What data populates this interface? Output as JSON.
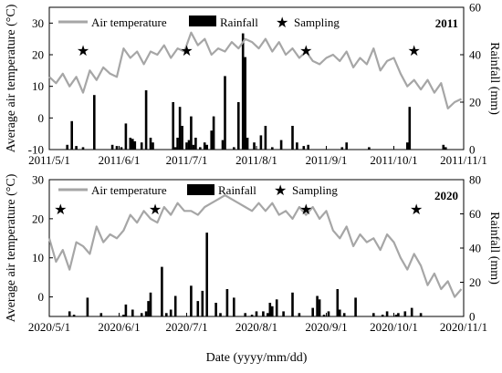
{
  "figure": {
    "xlabel": "Date (yyyy/mm/dd)"
  },
  "legend_labels": {
    "temperature": "Air temperature",
    "rainfall": "Rainfall",
    "sampling": "Sampling"
  },
  "colors": {
    "temperature": "#a6a6a6",
    "rainfall": "#000000",
    "sampling": "#000000"
  },
  "chart_data": [
    {
      "type": "line+bar",
      "year_label": "2011",
      "ylabel_left": "Average air temperature (°C)",
      "ylabel_right": "Rainfall (mm)",
      "y_left_range": [
        -10,
        35
      ],
      "y_left_ticks": [
        -10,
        0,
        10,
        20,
        30
      ],
      "y_right_range": [
        0,
        60
      ],
      "y_right_ticks": [
        0,
        20,
        40,
        60
      ],
      "x_range": [
        "2011-05-01",
        "2011-11-01"
      ],
      "x_ticks": [
        "2011/5/1",
        "2011/6/1",
        "2011/7/1",
        "2011/8/1",
        "2011/9/1",
        "2011/10/1",
        "2011/11/1"
      ],
      "legend": [
        "Air temperature",
        "Rainfall",
        "Sampling"
      ],
      "sampling_dates": [
        "2011-05-16",
        "2011-07-01",
        "2011-08-23",
        "2011-10-10"
      ],
      "temperature": {
        "dates": [
          "2011-05-01",
          "2011-05-04",
          "2011-05-07",
          "2011-05-10",
          "2011-05-13",
          "2011-05-16",
          "2011-05-19",
          "2011-05-22",
          "2011-05-25",
          "2011-05-28",
          "2011-05-31",
          "2011-06-03",
          "2011-06-06",
          "2011-06-09",
          "2011-06-12",
          "2011-06-15",
          "2011-06-18",
          "2011-06-21",
          "2011-06-24",
          "2011-06-27",
          "2011-06-30",
          "2011-07-03",
          "2011-07-06",
          "2011-07-09",
          "2011-07-12",
          "2011-07-15",
          "2011-07-18",
          "2011-07-21",
          "2011-07-24",
          "2011-07-27",
          "2011-07-30",
          "2011-08-02",
          "2011-08-05",
          "2011-08-08",
          "2011-08-11",
          "2011-08-14",
          "2011-08-17",
          "2011-08-20",
          "2011-08-23",
          "2011-08-26",
          "2011-08-29",
          "2011-09-01",
          "2011-09-04",
          "2011-09-07",
          "2011-09-10",
          "2011-09-13",
          "2011-09-16",
          "2011-09-19",
          "2011-09-22",
          "2011-09-25",
          "2011-09-28",
          "2011-10-01",
          "2011-10-04",
          "2011-10-07",
          "2011-10-10",
          "2011-10-13",
          "2011-10-16",
          "2011-10-19",
          "2011-10-22",
          "2011-10-25",
          "2011-10-28",
          "2011-10-31"
        ],
        "values": [
          13,
          11,
          14,
          10,
          13,
          8,
          15,
          12,
          16,
          14,
          13,
          22,
          19,
          21,
          17,
          21,
          20,
          23,
          19,
          22,
          21,
          27,
          23,
          25,
          20,
          22,
          21,
          24,
          22,
          25,
          24,
          22,
          25,
          21,
          24,
          20,
          22,
          19,
          21,
          18,
          17,
          19,
          20,
          18,
          21,
          16,
          19,
          17,
          22,
          15,
          18,
          19,
          14,
          10,
          12,
          9,
          12,
          8,
          11,
          3,
          5,
          6
        ]
      },
      "rainfall": {
        "dates": [
          "2011-05-09",
          "2011-05-11",
          "2011-05-13",
          "2011-05-16",
          "2011-05-21",
          "2011-05-29",
          "2011-05-31",
          "2011-06-02",
          "2011-06-04",
          "2011-06-06",
          "2011-06-07",
          "2011-06-08",
          "2011-06-11",
          "2011-06-13",
          "2011-06-15",
          "2011-06-16",
          "2011-06-25",
          "2011-06-26",
          "2011-06-27",
          "2011-06-28",
          "2011-06-29",
          "2011-07-01",
          "2011-07-02",
          "2011-07-03",
          "2011-07-04",
          "2011-07-05",
          "2011-07-07",
          "2011-07-09",
          "2011-07-10",
          "2011-07-12",
          "2011-07-13",
          "2011-07-17",
          "2011-07-18",
          "2011-07-22",
          "2011-07-24",
          "2011-07-26",
          "2011-07-27",
          "2011-07-28",
          "2011-07-31",
          "2011-08-03",
          "2011-08-05",
          "2011-08-08",
          "2011-08-12",
          "2011-08-17",
          "2011-08-19",
          "2011-08-22",
          "2011-08-24",
          "2011-09-08",
          "2011-09-10",
          "2011-09-20",
          "2011-10-07",
          "2011-10-08",
          "2011-10-23",
          "2011-10-24"
        ],
        "values": [
          2,
          12,
          1.5,
          1,
          23,
          2,
          1.5,
          1,
          11,
          5,
          4.5,
          3.5,
          3,
          25,
          5,
          3,
          20,
          1,
          5,
          18,
          10,
          3,
          4,
          14,
          2,
          5,
          1,
          3,
          2,
          8,
          14,
          4,
          31,
          1,
          20,
          49,
          39,
          5,
          3,
          6,
          10,
          1,
          4,
          10,
          3,
          1.5,
          2,
          1,
          3,
          1,
          3,
          18,
          2,
          1
        ]
      }
    },
    {
      "type": "line+bar",
      "year_label": "2020",
      "ylabel_left": "Average air temperature (°C)",
      "ylabel_right": "Rainfall (mm)",
      "y_left_range": [
        -5,
        30
      ],
      "y_left_ticks": [
        0,
        10,
        20,
        30
      ],
      "y_right_range": [
        0,
        80
      ],
      "y_right_ticks": [
        0,
        20,
        40,
        60,
        80
      ],
      "x_range": [
        "2020-05-01",
        "2020-11-01"
      ],
      "x_ticks": [
        "2020/5/1",
        "2020/6/1",
        "2020/7/1",
        "2020/8/1",
        "2020/9/1",
        "2020/10/1",
        "2020/11/1"
      ],
      "legend": [
        "Air temperature",
        "Rainfall",
        "Sampling"
      ],
      "sampling_dates": [
        "2020-05-06",
        "2020-06-17",
        "2020-08-23",
        "2020-10-11"
      ],
      "temperature": {
        "dates": [
          "2020-05-01",
          "2020-05-04",
          "2020-05-07",
          "2020-05-10",
          "2020-05-13",
          "2020-05-16",
          "2020-05-19",
          "2020-05-22",
          "2020-05-25",
          "2020-05-28",
          "2020-05-31",
          "2020-06-03",
          "2020-06-06",
          "2020-06-09",
          "2020-06-12",
          "2020-06-15",
          "2020-06-18",
          "2020-06-21",
          "2020-06-24",
          "2020-06-27",
          "2020-06-30",
          "2020-07-03",
          "2020-07-06",
          "2020-07-09",
          "2020-07-12",
          "2020-07-15",
          "2020-07-18",
          "2020-07-21",
          "2020-07-24",
          "2020-07-27",
          "2020-07-30",
          "2020-08-02",
          "2020-08-05",
          "2020-08-08",
          "2020-08-11",
          "2020-08-14",
          "2020-08-17",
          "2020-08-20",
          "2020-08-23",
          "2020-08-26",
          "2020-08-29",
          "2020-09-01",
          "2020-09-04",
          "2020-09-07",
          "2020-09-10",
          "2020-09-13",
          "2020-09-16",
          "2020-09-19",
          "2020-09-22",
          "2020-09-25",
          "2020-09-28",
          "2020-10-01",
          "2020-10-04",
          "2020-10-07",
          "2020-10-10",
          "2020-10-13",
          "2020-10-16",
          "2020-10-19",
          "2020-10-22",
          "2020-10-25",
          "2020-10-28",
          "2020-10-31"
        ],
        "values": [
          15,
          9,
          12,
          7,
          14,
          13,
          11,
          18,
          14,
          16,
          15,
          17,
          21,
          19,
          22,
          20,
          19,
          23,
          21,
          24,
          22,
          22,
          21,
          23,
          24,
          25,
          26,
          25,
          24,
          23,
          22,
          24,
          22,
          24,
          21,
          22,
          20,
          23,
          21,
          23,
          20,
          22,
          17,
          15,
          18,
          13,
          16,
          14,
          15,
          12,
          16,
          14,
          10,
          7,
          11,
          8,
          3,
          6,
          2,
          4,
          0,
          2
        ]
      },
      "rainfall": {
        "dates": [
          "2020-05-10",
          "2020-05-12",
          "2020-05-18",
          "2020-05-24",
          "2020-06-03",
          "2020-06-04",
          "2020-06-07",
          "2020-06-11",
          "2020-06-13",
          "2020-06-14",
          "2020-06-15",
          "2020-06-20",
          "2020-06-22",
          "2020-06-24",
          "2020-06-26",
          "2020-07-03",
          "2020-07-06",
          "2020-07-08",
          "2020-07-10",
          "2020-07-14",
          "2020-07-16",
          "2020-07-19",
          "2020-07-22",
          "2020-07-27",
          "2020-07-30",
          "2020-08-01",
          "2020-08-04",
          "2020-08-06",
          "2020-08-07",
          "2020-08-08",
          "2020-08-10",
          "2020-08-13",
          "2020-08-17",
          "2020-08-20",
          "2020-08-26",
          "2020-08-28",
          "2020-08-29",
          "2020-08-31",
          "2020-09-02",
          "2020-09-06",
          "2020-09-07",
          "2020-09-09",
          "2020-09-14",
          "2020-09-22",
          "2020-09-26",
          "2020-09-28",
          "2020-10-02",
          "2020-10-03",
          "2020-10-06",
          "2020-10-09",
          "2020-10-13"
        ],
        "values": [
          3,
          1,
          11,
          2,
          1,
          7,
          4,
          2,
          3,
          9,
          14,
          29,
          2,
          4,
          12,
          18,
          9,
          15,
          49,
          8,
          2,
          16,
          11,
          2,
          1,
          3,
          3,
          2,
          8,
          6,
          10,
          3,
          14,
          2,
          5,
          12,
          10,
          1,
          3,
          16,
          4,
          2,
          11,
          2,
          1,
          3,
          1,
          2,
          3,
          5,
          2
        ]
      }
    }
  ]
}
